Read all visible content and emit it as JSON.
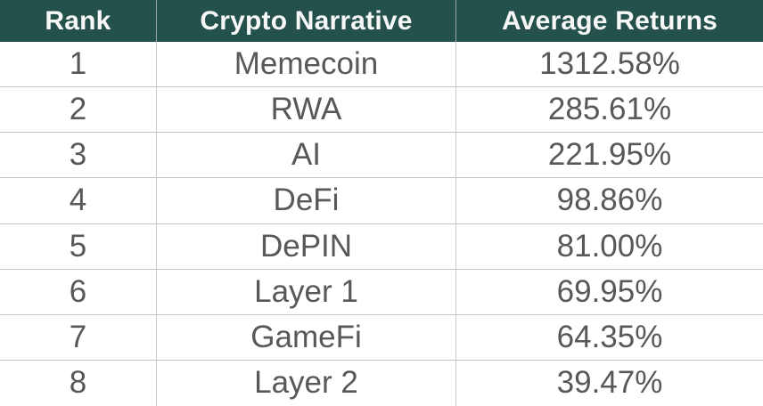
{
  "table": {
    "columns": [
      {
        "label": "Rank"
      },
      {
        "label": "Crypto Narrative"
      },
      {
        "label": "Average Returns"
      }
    ],
    "rows": [
      {
        "rank": "1",
        "narrative": "Memecoin",
        "returns": "1312.58%"
      },
      {
        "rank": "2",
        "narrative": "RWA",
        "returns": "285.61%"
      },
      {
        "rank": "3",
        "narrative": "AI",
        "returns": "221.95%"
      },
      {
        "rank": "4",
        "narrative": "DeFi",
        "returns": "98.86%"
      },
      {
        "rank": "5",
        "narrative": "DePIN",
        "returns": "81.00%"
      },
      {
        "rank": "6",
        "narrative": "Layer 1",
        "returns": "69.95%"
      },
      {
        "rank": "7",
        "narrative": "GameFi",
        "returns": "64.35%"
      },
      {
        "rank": "8",
        "narrative": "Layer 2",
        "returns": "39.47%"
      }
    ]
  },
  "colors": {
    "header_background": "#24514B",
    "header_text": "#F7F7F7",
    "body_text": "#58585A",
    "horizontal_line": "#C4C4C4",
    "body_vertical_line": "#C9C9C9",
    "header_vertical_line": "#97A3A0",
    "row_background": "#FFFFFF"
  },
  "chart_data": {
    "type": "table",
    "title": "",
    "columns": [
      "Rank",
      "Crypto Narrative",
      "Average Returns"
    ],
    "rows": [
      [
        1,
        "Memecoin",
        "1312.58%"
      ],
      [
        2,
        "RWA",
        "285.61%"
      ],
      [
        3,
        "AI",
        "221.95%"
      ],
      [
        4,
        "DeFi",
        "98.86%"
      ],
      [
        5,
        "DePIN",
        "81.00%"
      ],
      [
        6,
        "Layer 1",
        "69.95%"
      ],
      [
        7,
        "GameFi",
        "64.35%"
      ],
      [
        8,
        "Layer 2",
        "39.47%"
      ]
    ],
    "average_returns_pct": [
      1312.58,
      285.61,
      221.95,
      98.86,
      81.0,
      69.95,
      64.35,
      39.47
    ],
    "layout": {
      "header_style": "dark-teal",
      "alignment": "center",
      "zebra": false
    }
  }
}
